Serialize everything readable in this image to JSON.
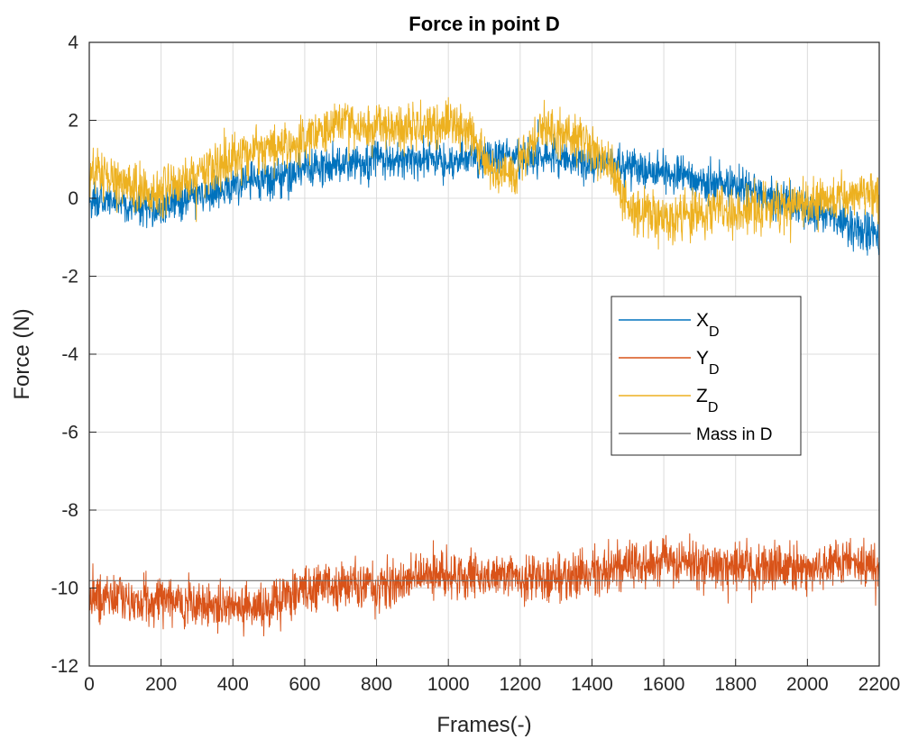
{
  "chart_data": {
    "type": "line",
    "title": "Force in point D",
    "xlabel": "Frames(-)",
    "ylabel": "Force (N)",
    "xlim": [
      0,
      2200
    ],
    "ylim": [
      -12,
      4
    ],
    "xticks": [
      0,
      200,
      400,
      600,
      800,
      1000,
      1200,
      1400,
      1600,
      1800,
      2000,
      2200
    ],
    "yticks": [
      -12,
      -10,
      -8,
      -6,
      -4,
      -2,
      0,
      2,
      4
    ],
    "grid": true,
    "legend_position": "center-right",
    "series": [
      {
        "name": "X",
        "name_subscript": "D",
        "color": "#0072BD",
        "noise": 0.25,
        "points": [
          [
            0,
            -0.05
          ],
          [
            100,
            -0.1
          ],
          [
            180,
            -0.3
          ],
          [
            250,
            -0.1
          ],
          [
            300,
            0.05
          ],
          [
            400,
            0.3
          ],
          [
            500,
            0.5
          ],
          [
            600,
            0.75
          ],
          [
            700,
            0.85
          ],
          [
            800,
            0.95
          ],
          [
            900,
            1.0
          ],
          [
            1000,
            0.95
          ],
          [
            1100,
            1.0
          ],
          [
            1200,
            1.05
          ],
          [
            1300,
            1.0
          ],
          [
            1400,
            0.95
          ],
          [
            1500,
            0.85
          ],
          [
            1600,
            0.7
          ],
          [
            1700,
            0.45
          ],
          [
            1800,
            0.25
          ],
          [
            1900,
            0.0
          ],
          [
            2000,
            -0.3
          ],
          [
            2100,
            -0.6
          ],
          [
            2200,
            -1.05
          ]
        ]
      },
      {
        "name": "Y",
        "name_subscript": "D",
        "color": "#D95319",
        "noise": 0.3,
        "points": [
          [
            0,
            -10.2
          ],
          [
            100,
            -10.3
          ],
          [
            200,
            -10.3
          ],
          [
            300,
            -10.4
          ],
          [
            400,
            -10.5
          ],
          [
            500,
            -10.55
          ],
          [
            550,
            -10.3
          ],
          [
            600,
            -10.0
          ],
          [
            700,
            -9.95
          ],
          [
            800,
            -10.0
          ],
          [
            900,
            -9.75
          ],
          [
            1000,
            -9.7
          ],
          [
            1100,
            -9.7
          ],
          [
            1200,
            -9.75
          ],
          [
            1300,
            -9.7
          ],
          [
            1400,
            -9.65
          ],
          [
            1500,
            -9.4
          ],
          [
            1600,
            -9.35
          ],
          [
            1700,
            -9.4
          ],
          [
            1800,
            -9.4
          ],
          [
            1900,
            -9.45
          ],
          [
            2000,
            -9.5
          ],
          [
            2100,
            -9.3
          ],
          [
            2200,
            -9.35
          ]
        ]
      },
      {
        "name": "Z",
        "name_subscript": "D",
        "color": "#EDB120",
        "noise": 0.3,
        "points": [
          [
            0,
            0.7
          ],
          [
            100,
            0.4
          ],
          [
            180,
            0.05
          ],
          [
            250,
            0.35
          ],
          [
            300,
            0.6
          ],
          [
            400,
            1.1
          ],
          [
            500,
            1.3
          ],
          [
            600,
            1.45
          ],
          [
            700,
            1.9
          ],
          [
            800,
            1.85
          ],
          [
            900,
            1.8
          ],
          [
            1000,
            1.9
          ],
          [
            1060,
            1.7
          ],
          [
            1100,
            1.1
          ],
          [
            1150,
            0.45
          ],
          [
            1200,
            0.9
          ],
          [
            1250,
            1.7
          ],
          [
            1300,
            1.75
          ],
          [
            1400,
            1.35
          ],
          [
            1450,
            0.8
          ],
          [
            1500,
            -0.2
          ],
          [
            1550,
            -0.45
          ],
          [
            1600,
            -0.5
          ],
          [
            1700,
            -0.4
          ],
          [
            1800,
            -0.3
          ],
          [
            1900,
            -0.25
          ],
          [
            2000,
            -0.1
          ],
          [
            2100,
            0.0
          ],
          [
            2200,
            0.1
          ]
        ]
      },
      {
        "name": "Mass in D",
        "color": "#6e6e6e",
        "noise": 0,
        "points": [
          [
            0,
            -9.81
          ],
          [
            2200,
            -9.81
          ]
        ]
      }
    ]
  }
}
